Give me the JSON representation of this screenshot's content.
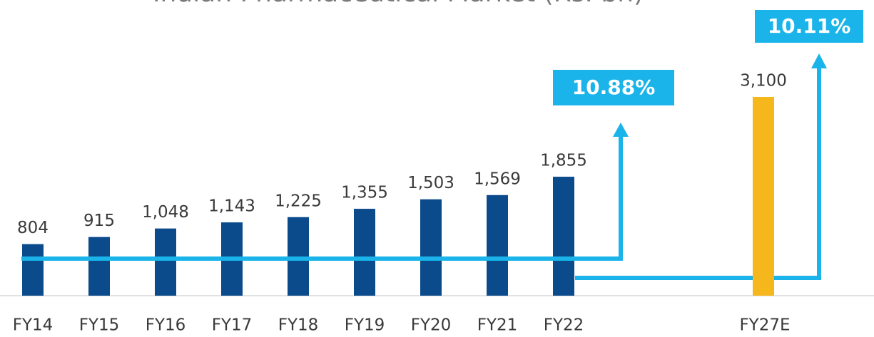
{
  "chart_data": {
    "type": "bar",
    "title": "Indian Pharmaceutical Market (Rs. bn)",
    "categories": [
      "FY14",
      "FY15",
      "FY16",
      "FY17",
      "FY18",
      "FY19",
      "FY20",
      "FY21",
      "FY22",
      "FY27E"
    ],
    "values": [
      804,
      915,
      1048,
      1143,
      1225,
      1355,
      1503,
      1569,
      1855,
      3100
    ],
    "value_labels": [
      "804",
      "915",
      "1,048",
      "1,143",
      "1,225",
      "1,355",
      "1,503",
      "1,569",
      "1,855",
      "3,100"
    ],
    "colors": [
      "#0b4a8b",
      "#0b4a8b",
      "#0b4a8b",
      "#0b4a8b",
      "#0b4a8b",
      "#0b4a8b",
      "#0b4a8b",
      "#0b4a8b",
      "#0b4a8b",
      "#f5b71b"
    ],
    "annotations": [
      {
        "value": 10.88,
        "label": "10.88%"
      },
      {
        "value": 10.11,
        "label": "10.11%"
      }
    ]
  }
}
